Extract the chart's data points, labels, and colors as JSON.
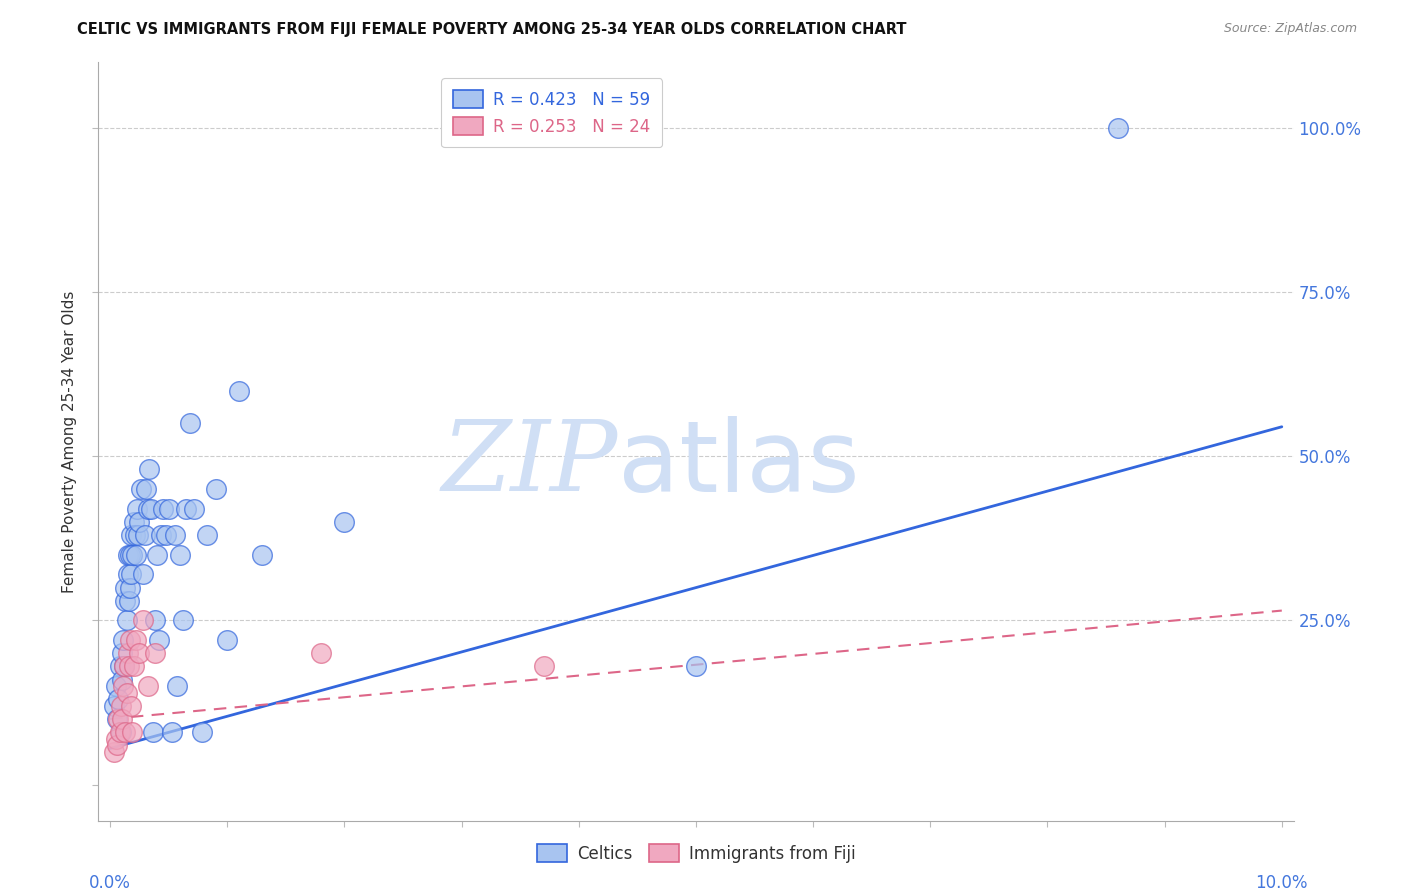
{
  "title": "CELTIC VS IMMIGRANTS FROM FIJI FEMALE POVERTY AMONG 25-34 YEAR OLDS CORRELATION CHART",
  "source": "Source: ZipAtlas.com",
  "ylabel": "Female Poverty Among 25-34 Year Olds",
  "legend1_r": "0.423",
  "legend1_n": "59",
  "legend2_r": "0.253",
  "legend2_n": "24",
  "celtics_color": "#a8c4f0",
  "fiji_color": "#f0a8c0",
  "line1_color": "#3366dd",
  "line2_color": "#dd6688",
  "watermark_color": "#d0dff5",
  "celtics_x": [
    0.0003,
    0.0005,
    0.0006,
    0.0007,
    0.0008,
    0.0009,
    0.001,
    0.001,
    0.0011,
    0.0012,
    0.0013,
    0.0013,
    0.0014,
    0.0015,
    0.0015,
    0.0016,
    0.0017,
    0.0017,
    0.0018,
    0.0018,
    0.0019,
    0.002,
    0.0021,
    0.0022,
    0.0023,
    0.0024,
    0.0025,
    0.0026,
    0.0028,
    0.003,
    0.0031,
    0.0032,
    0.0033,
    0.0035,
    0.0037,
    0.0038,
    0.004,
    0.0042,
    0.0043,
    0.0045,
    0.0048,
    0.005,
    0.0053,
    0.0055,
    0.0057,
    0.006,
    0.0062,
    0.0065,
    0.0068,
    0.0072,
    0.0078,
    0.0083,
    0.009,
    0.01,
    0.011,
    0.013,
    0.02,
    0.05,
    0.086
  ],
  "celtics_y": [
    0.12,
    0.15,
    0.1,
    0.13,
    0.18,
    0.08,
    0.16,
    0.2,
    0.22,
    0.18,
    0.28,
    0.3,
    0.25,
    0.32,
    0.35,
    0.28,
    0.35,
    0.3,
    0.38,
    0.32,
    0.35,
    0.4,
    0.38,
    0.35,
    0.42,
    0.38,
    0.4,
    0.45,
    0.32,
    0.38,
    0.45,
    0.42,
    0.48,
    0.42,
    0.08,
    0.25,
    0.35,
    0.22,
    0.38,
    0.42,
    0.38,
    0.42,
    0.08,
    0.38,
    0.15,
    0.35,
    0.25,
    0.42,
    0.55,
    0.42,
    0.08,
    0.38,
    0.45,
    0.22,
    0.6,
    0.35,
    0.4,
    0.18,
    1.0
  ],
  "fiji_x": [
    0.0003,
    0.0005,
    0.0006,
    0.0007,
    0.0008,
    0.0009,
    0.001,
    0.0011,
    0.0012,
    0.0013,
    0.0014,
    0.0015,
    0.0016,
    0.0017,
    0.0018,
    0.0019,
    0.002,
    0.0022,
    0.0025,
    0.0028,
    0.0032,
    0.0038,
    0.018,
    0.037
  ],
  "fiji_y": [
    0.05,
    0.07,
    0.06,
    0.1,
    0.08,
    0.12,
    0.1,
    0.15,
    0.18,
    0.08,
    0.14,
    0.2,
    0.18,
    0.22,
    0.12,
    0.08,
    0.18,
    0.22,
    0.2,
    0.25,
    0.15,
    0.2,
    0.2,
    0.18
  ],
  "celtics_line_x": [
    0.0,
    0.1
  ],
  "celtics_line_y": [
    0.055,
    0.545
  ],
  "fiji_line_x": [
    0.0,
    0.1
  ],
  "fiji_line_y": [
    0.1,
    0.265
  ],
  "xlim": [
    -0.001,
    0.101
  ],
  "ylim": [
    -0.055,
    1.1
  ],
  "yticks": [
    0.0,
    0.25,
    0.5,
    0.75,
    1.0
  ],
  "ytick_labels": [
    "",
    "25.0%",
    "50.0%",
    "75.0%",
    "100.0%"
  ]
}
